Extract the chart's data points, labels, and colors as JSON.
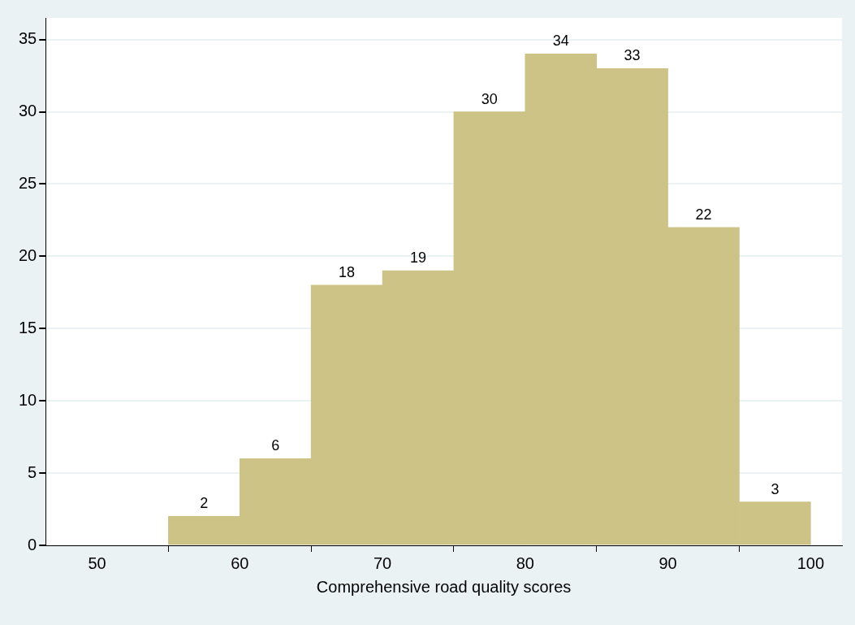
{
  "chart_data": {
    "type": "histogram",
    "xlabel": "Comprehensive road quality scores",
    "bins": [
      55,
      60,
      65,
      70,
      75,
      80,
      85,
      90,
      95,
      100
    ],
    "values": [
      2,
      6,
      18,
      19,
      30,
      34,
      33,
      22,
      3
    ],
    "color": "#cdc386",
    "xlim": [
      46.4,
      102.2
    ],
    "xticks": [
      50,
      60,
      70,
      80,
      90,
      100
    ],
    "ylim": [
      0,
      36.5
    ],
    "yticks": [
      0,
      5,
      10,
      15,
      20,
      25,
      30,
      35
    ],
    "grid": "y",
    "data_labels": true,
    "legend": false
  }
}
